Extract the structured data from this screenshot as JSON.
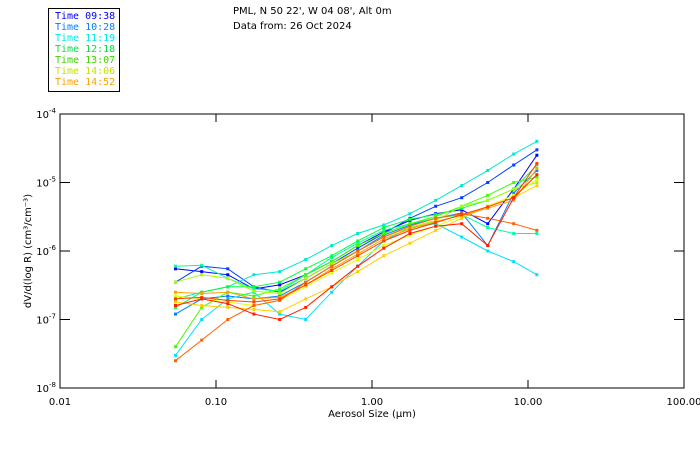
{
  "header": {
    "line1": "PML, N 50 22', W 04 08', Alt 0m",
    "line2": "Data from: 26 Oct 2024"
  },
  "legend": [
    {
      "label": "Time 09:38",
      "color": "#0000ff"
    },
    {
      "label": "Time 10:28",
      "color": "#0080ff"
    },
    {
      "label": "Time 11:19",
      "color": "#00e8e8"
    },
    {
      "label": "Time 12:18",
      "color": "#00e040"
    },
    {
      "label": "Time 13:07",
      "color": "#40d000"
    },
    {
      "label": "Time 14:06",
      "color": "#c8e000"
    },
    {
      "label": "Time 14:52",
      "color": "#ffa000"
    }
  ],
  "chart_data": {
    "type": "line",
    "xscale": "log",
    "yscale": "log",
    "xlabel": "Aerosol Size (μm)",
    "ylabel": "dV/d(log R) (cm³/cm⁻³)",
    "xlim": [
      0.01,
      100
    ],
    "ylim": [
      1e-08,
      0.0001
    ],
    "xticks": [
      {
        "v": 0.01,
        "label": "0.01"
      },
      {
        "v": 0.1,
        "label": "0.10"
      },
      {
        "v": 1,
        "label": "1.00"
      },
      {
        "v": 10,
        "label": "10.00"
      },
      {
        "v": 100,
        "label": "100.00"
      }
    ],
    "yticks": [
      {
        "v": 0.0001,
        "base": "10",
        "exp": "-4"
      },
      {
        "v": 1e-05,
        "base": "10",
        "exp": "-5"
      },
      {
        "v": 1e-06,
        "base": "10",
        "exp": "-6"
      },
      {
        "v": 1e-07,
        "base": "10",
        "exp": "-7"
      },
      {
        "v": 1e-08,
        "base": "10",
        "exp": "-8"
      }
    ],
    "x": [
      0.055,
      0.081,
      0.119,
      0.175,
      0.256,
      0.376,
      0.552,
      0.81,
      1.19,
      1.75,
      2.56,
      3.76,
      5.52,
      8.1,
      11.4
    ],
    "series": [
      {
        "color": "#0000ff",
        "values": [
          5.5e-07,
          5e-07,
          4.5e-07,
          2.8e-07,
          3.2e-07,
          4.5e-07,
          7e-07,
          1.2e-06,
          1.9e-06,
          2.8e-06,
          3.5e-06,
          4e-06,
          2.5e-06,
          8e-06,
          2.5e-05
        ]
      },
      {
        "color": "#0040ff",
        "values": [
          3.5e-07,
          6e-07,
          5.5e-07,
          3e-07,
          2.5e-07,
          4e-07,
          6.5e-07,
          1.1e-06,
          1.8e-06,
          3e-06,
          4.5e-06,
          6e-06,
          1e-05,
          1.8e-05,
          3e-05
        ]
      },
      {
        "color": "#0080ff",
        "values": [
          1.2e-07,
          2e-07,
          2.2e-07,
          2e-07,
          2.2e-07,
          3.5e-07,
          6e-07,
          1e-06,
          1.7e-06,
          2.4e-06,
          3e-06,
          3.6e-06,
          1.2e-06,
          7e-06,
          1.5e-05
        ]
      },
      {
        "color": "#00e0ff",
        "values": [
          3e-08,
          1e-07,
          2e-07,
          2.5e-07,
          1.2e-07,
          1e-07,
          2.5e-07,
          6e-07,
          1.4e-06,
          2.2e-06,
          2.5e-06,
          1.6e-06,
          1e-06,
          7e-07,
          4.5e-07
        ]
      },
      {
        "color": "#00e8d0",
        "values": [
          2e-07,
          2.5e-07,
          3e-07,
          4.5e-07,
          5e-07,
          7.5e-07,
          1.2e-06,
          1.8e-06,
          2.4e-06,
          3.5e-06,
          5.5e-06,
          9e-06,
          1.5e-05,
          2.6e-05,
          4e-05
        ]
      },
      {
        "color": "#00ffa0",
        "values": [
          6e-07,
          6.2e-07,
          4e-07,
          2.8e-07,
          2.6e-07,
          4.5e-07,
          8e-07,
          1.3e-06,
          2e-06,
          2.5e-06,
          3e-06,
          3.4e-06,
          2.2e-06,
          1.8e-06,
          1.8e-06
        ]
      },
      {
        "color": "#00ff40",
        "values": [
          1.5e-07,
          2.5e-07,
          3e-07,
          3e-07,
          3.5e-07,
          5.5e-07,
          8.5e-07,
          1.4e-06,
          2.2e-06,
          2.9e-06,
          3.4e-06,
          4.2e-06,
          5.5e-06,
          8e-06,
          1.8e-05
        ]
      },
      {
        "color": "#40ff00",
        "values": [
          4e-08,
          1.5e-07,
          2.5e-07,
          2.2e-07,
          2.8e-07,
          4.5e-07,
          7e-07,
          1.2e-06,
          1.8e-06,
          2.5e-06,
          3.2e-06,
          4.5e-06,
          6.5e-06,
          1e-05,
          1.2e-05
        ]
      },
      {
        "color": "#a0ff00",
        "values": [
          3.5e-07,
          4.5e-07,
          4e-07,
          2.6e-07,
          2.4e-07,
          4e-07,
          6.5e-07,
          1e-06,
          1.6e-06,
          2.2e-06,
          2.8e-06,
          4.5e-06,
          5.5e-06,
          8e-06,
          1e-05
        ]
      },
      {
        "color": "#e0ff00",
        "values": [
          2.2e-07,
          2e-07,
          1.8e-07,
          1.6e-07,
          1.9e-07,
          3e-07,
          4.8e-07,
          7.5e-07,
          1.2e-06,
          1.7e-06,
          2.3e-06,
          3.2e-06,
          4.5e-06,
          6.5e-06,
          1.1e-05
        ]
      },
      {
        "color": "#ffd000",
        "values": [
          1.8e-07,
          1.6e-07,
          1.5e-07,
          1.4e-07,
          1.3e-07,
          2e-07,
          3e-07,
          5e-07,
          8.5e-07,
          1.3e-06,
          2e-06,
          3e-06,
          4.5e-06,
          6e-06,
          9e-06
        ]
      },
      {
        "color": "#ffa000",
        "values": [
          2.5e-07,
          2.4e-07,
          2.5e-07,
          2e-07,
          2.1e-07,
          3.2e-07,
          5.5e-07,
          9e-07,
          1.5e-06,
          2.1e-06,
          2.7e-06,
          3.3e-06,
          4.2e-06,
          5.5e-06,
          1.6e-05
        ]
      },
      {
        "color": "#ff6000",
        "values": [
          2.5e-08,
          5e-08,
          1e-07,
          1.6e-07,
          1.9e-07,
          3.5e-07,
          6e-07,
          1e-06,
          1.6e-06,
          2.3e-06,
          3e-06,
          3.5e-06,
          3e-06,
          2.5e-06,
          2e-06
        ]
      },
      {
        "color": "#ff4000",
        "values": [
          2e-07,
          2.1e-07,
          1.9e-07,
          1.8e-07,
          2e-07,
          3.2e-07,
          5.2e-07,
          8.5e-07,
          1.4e-06,
          2e-06,
          2.6e-06,
          3.4e-06,
          4.4e-06,
          6e-06,
          1.9e-05
        ]
      },
      {
        "color": "#ff2000",
        "values": [
          1.6e-07,
          2e-07,
          1.7e-07,
          1.2e-07,
          1e-07,
          1.5e-07,
          3e-07,
          6e-07,
          1.1e-06,
          1.8e-06,
          2.3e-06,
          2.5e-06,
          1.2e-06,
          6e-06,
          1.3e-05
        ]
      }
    ]
  }
}
